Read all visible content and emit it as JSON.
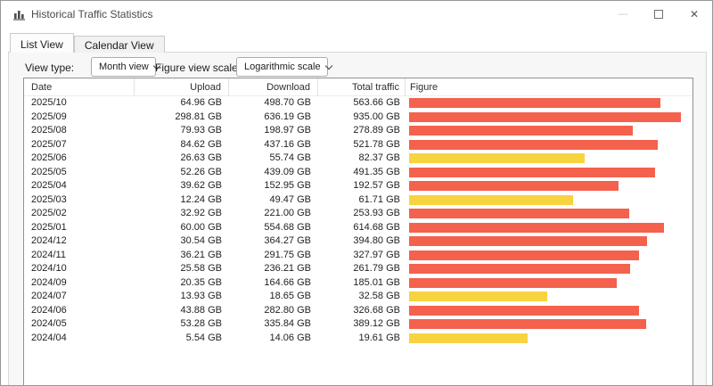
{
  "window": {
    "title": "Historical Traffic Statistics"
  },
  "icons": {
    "minimize": "—",
    "maximize": "maximize-box",
    "close": "✕",
    "app": "bar-chart-icon",
    "combo_chevron": "chevron-down"
  },
  "tabs": [
    {
      "label": "List View",
      "active": true
    },
    {
      "label": "Calendar View",
      "active": false
    }
  ],
  "toolbar": {
    "view_type_label": "View type:",
    "view_type_value": "Month view",
    "figure_scale_label": "Figure view scale:",
    "figure_scale_value": "Logarithmic scale"
  },
  "table": {
    "columns": [
      "Date",
      "Upload",
      "Download",
      "Total traffic",
      "Figure"
    ],
    "rows": [
      {
        "date": "2025/10",
        "upload": "64.96 GB",
        "download": "498.70 GB",
        "total": "563.66 GB"
      },
      {
        "date": "2025/09",
        "upload": "298.81 GB",
        "download": "636.19 GB",
        "total": "935.00 GB"
      },
      {
        "date": "2025/08",
        "upload": "79.93 GB",
        "download": "198.97 GB",
        "total": "278.89 GB"
      },
      {
        "date": "2025/07",
        "upload": "84.62 GB",
        "download": "437.16 GB",
        "total": "521.78 GB"
      },
      {
        "date": "2025/06",
        "upload": "26.63 GB",
        "download": "55.74 GB",
        "total": "82.37 GB"
      },
      {
        "date": "2025/05",
        "upload": "52.26 GB",
        "download": "439.09 GB",
        "total": "491.35 GB"
      },
      {
        "date": "2025/04",
        "upload": "39.62 GB",
        "download": "152.95 GB",
        "total": "192.57 GB"
      },
      {
        "date": "2025/03",
        "upload": "12.24 GB",
        "download": "49.47 GB",
        "total": "61.71 GB"
      },
      {
        "date": "2025/02",
        "upload": "32.92 GB",
        "download": "221.00 GB",
        "total": "253.93 GB"
      },
      {
        "date": "2025/01",
        "upload": "60.00 GB",
        "download": "554.68 GB",
        "total": "614.68 GB"
      },
      {
        "date": "2024/12",
        "upload": "30.54 GB",
        "download": "364.27 GB",
        "total": "394.80 GB"
      },
      {
        "date": "2024/11",
        "upload": "36.21 GB",
        "download": "291.75 GB",
        "total": "327.97 GB"
      },
      {
        "date": "2024/10",
        "upload": "25.58 GB",
        "download": "236.21 GB",
        "total": "261.79 GB"
      },
      {
        "date": "2024/09",
        "upload": "20.35 GB",
        "download": "164.66 GB",
        "total": "185.01 GB"
      },
      {
        "date": "2024/07",
        "upload": "13.93 GB",
        "download": "18.65 GB",
        "total": "32.58 GB"
      },
      {
        "date": "2024/06",
        "upload": "43.88 GB",
        "download": "282.80 GB",
        "total": "326.68 GB"
      },
      {
        "date": "2024/05",
        "upload": "53.28 GB",
        "download": "335.84 GB",
        "total": "389.12 GB"
      },
      {
        "date": "2024/04",
        "upload": "5.54 GB",
        "download": "14.06 GB",
        "total": "19.61 GB"
      }
    ]
  },
  "chart_data": {
    "type": "bar",
    "orientation": "horizontal",
    "scale": "logarithmic",
    "unit": "GB",
    "title": "Monthly total traffic figure",
    "categories": [
      "2025/10",
      "2025/09",
      "2025/08",
      "2025/07",
      "2025/06",
      "2025/05",
      "2025/04",
      "2025/03",
      "2025/02",
      "2025/01",
      "2024/12",
      "2024/11",
      "2024/10",
      "2024/09",
      "2024/07",
      "2024/06",
      "2024/05",
      "2024/04"
    ],
    "values": [
      563.66,
      935.0,
      278.89,
      521.78,
      82.37,
      491.35,
      192.57,
      61.71,
      253.93,
      614.68,
      394.8,
      327.97,
      261.79,
      185.01,
      32.58,
      326.68,
      389.12,
      19.61
    ],
    "axis_max": 935.0,
    "palette": {
      "red": "#f4614d",
      "yellow": "#f7d340"
    },
    "bar_colors": [
      "red",
      "red",
      "red",
      "red",
      "yellow",
      "red",
      "red",
      "yellow",
      "red",
      "red",
      "red",
      "red",
      "red",
      "red",
      "yellow",
      "red",
      "red",
      "yellow"
    ]
  }
}
